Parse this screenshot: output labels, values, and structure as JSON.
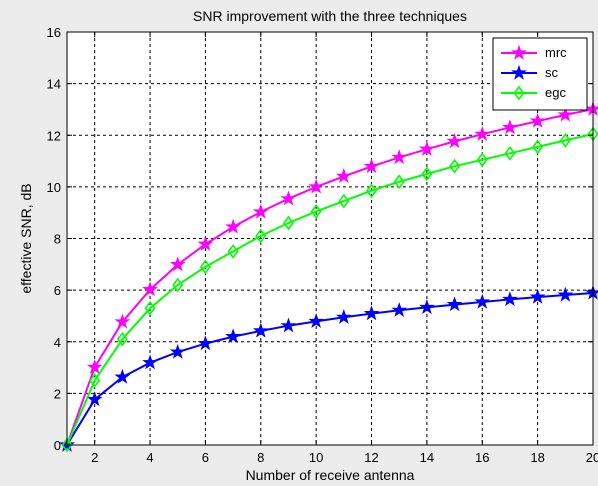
{
  "chart_data": {
    "type": "line",
    "title": "SNR improvement with the three techniques",
    "xlabel": "Number of receive antenna",
    "ylabel": "effective SNR, dB",
    "xlim": [
      1,
      20
    ],
    "ylim": [
      0,
      16
    ],
    "xticks": [
      2,
      4,
      6,
      8,
      10,
      12,
      14,
      16,
      18,
      20
    ],
    "yticks": [
      0,
      2,
      4,
      6,
      8,
      10,
      12,
      14,
      16
    ],
    "grid": true,
    "legend_position": "top-right",
    "x": [
      1,
      2,
      3,
      4,
      5,
      6,
      7,
      8,
      9,
      10,
      11,
      12,
      13,
      14,
      15,
      16,
      17,
      18,
      19,
      20
    ],
    "series": [
      {
        "name": "mrc",
        "color": "#ff00ff",
        "marker": "pentagram",
        "values": [
          0,
          3.01,
          4.77,
          6.02,
          6.99,
          7.78,
          8.45,
          9.03,
          9.54,
          10.0,
          10.41,
          10.79,
          11.14,
          11.46,
          11.76,
          12.04,
          12.3,
          12.55,
          12.79,
          13.01
        ]
      },
      {
        "name": "sc",
        "color": "#0000ff",
        "marker": "pentagram",
        "values": [
          0,
          1.76,
          2.63,
          3.19,
          3.6,
          3.93,
          4.2,
          4.42,
          4.62,
          4.79,
          4.95,
          5.09,
          5.22,
          5.33,
          5.44,
          5.54,
          5.64,
          5.73,
          5.81,
          5.89
        ]
      },
      {
        "name": "egc",
        "color": "#00ff00",
        "marker": "diamond",
        "values": [
          0,
          2.5,
          4.1,
          5.3,
          6.2,
          6.9,
          7.5,
          8.1,
          8.6,
          9.05,
          9.45,
          9.85,
          10.2,
          10.5,
          10.8,
          11.05,
          11.3,
          11.55,
          11.8,
          12.05
        ]
      }
    ]
  }
}
